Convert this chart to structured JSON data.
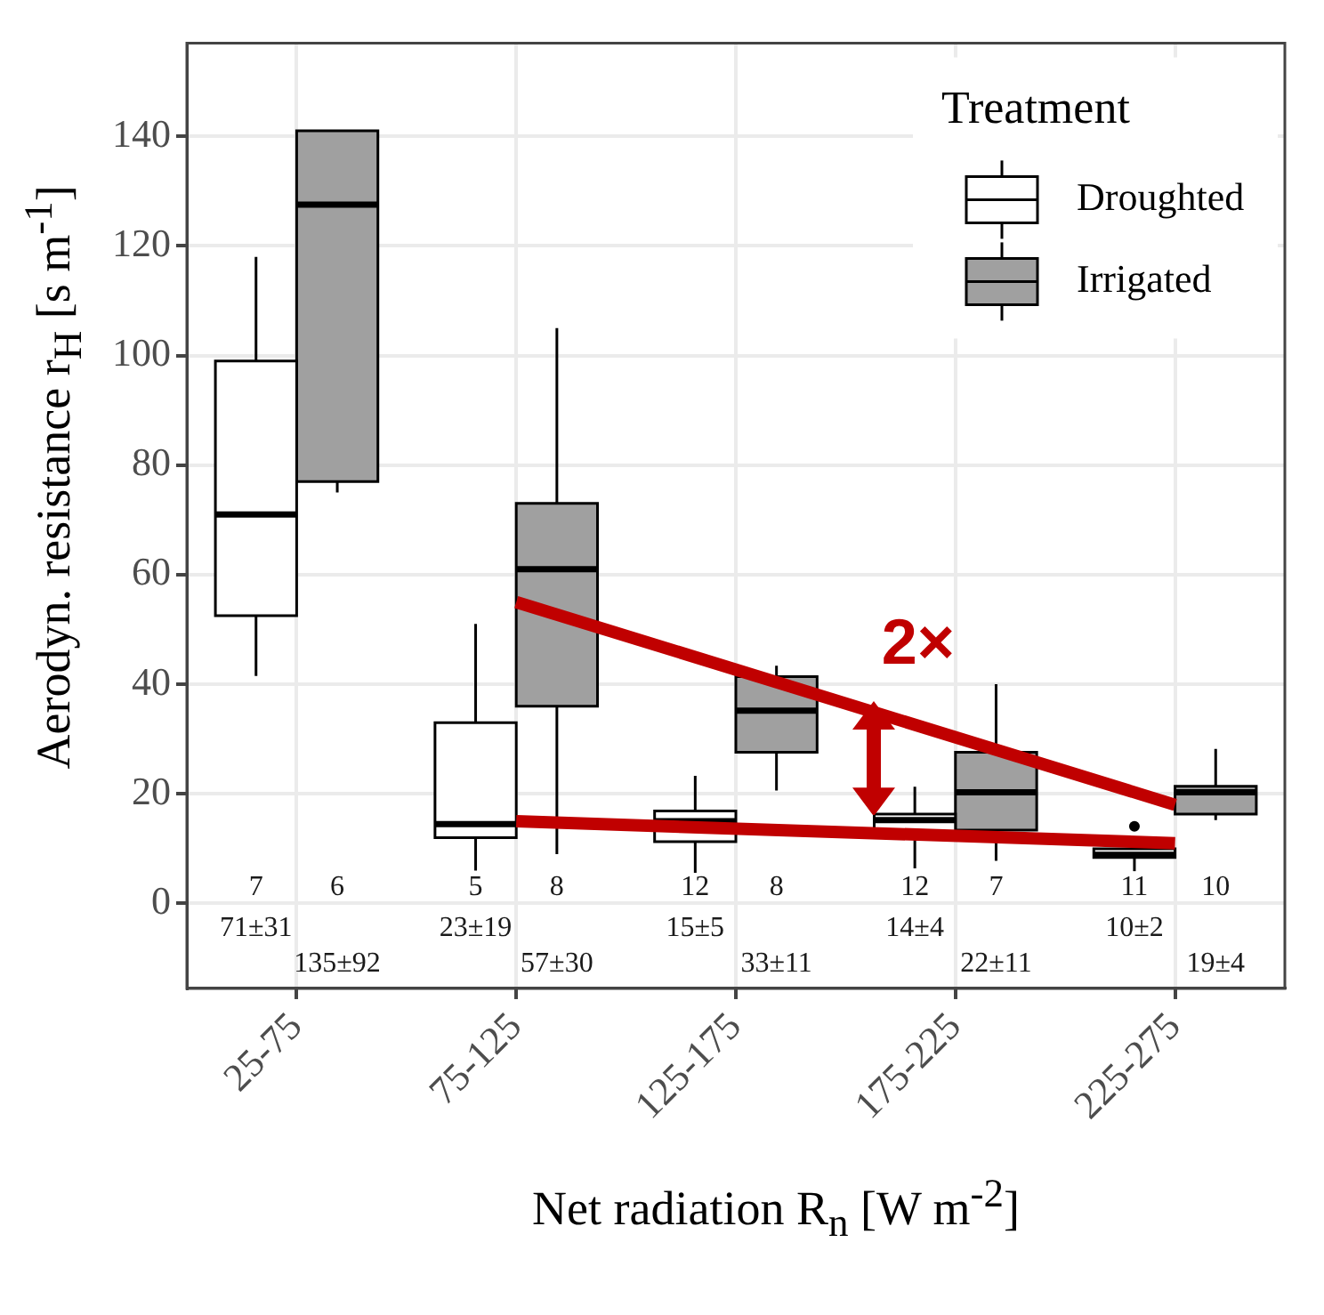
{
  "chart_data": {
    "type": "box",
    "xlabel": "Net radiation R$_{n}$ [W m$^{-2}$]",
    "ylabel": "Aerodyn. resistance r$_{H}$ [s m$^{-1}$]",
    "legend_title": "Treatment",
    "legend": "top right",
    "grid": true,
    "categories": [
      "25-75",
      "75-125",
      "125-175",
      "175-225",
      "225-275"
    ],
    "ylim": [
      -15.5,
      157
    ],
    "yticks": [
      0,
      20,
      40,
      60,
      80,
      100,
      120,
      140
    ],
    "annotations": [
      "2×"
    ],
    "series": [
      {
        "name": "Droughted",
        "color": "#ffffff",
        "boxes": [
          {
            "low": 41.5,
            "q1": 52.5,
            "median": 71,
            "q3": 99,
            "high": 118
          },
          {
            "low": 6,
            "q1": 12,
            "median": 14.5,
            "q3": 33,
            "high": 51
          },
          {
            "low": 5.6,
            "q1": 11.3,
            "median": 15,
            "q3": 16.9,
            "high": 23.3
          },
          {
            "low": 6.4,
            "q1": 13.1,
            "median": 15.2,
            "q3": 16.3,
            "high": 21.3
          },
          {
            "low": 5.9,
            "q1": 8.4,
            "median": 8.9,
            "q3": 10,
            "high": 10,
            "outliers": [
              14.1
            ]
          }
        ],
        "value_labels": [
          "7\n71±31",
          "5\n23±19",
          "12\n15±5",
          "12\n14±4",
          "11\n10±2"
        ]
      },
      {
        "name": "Irrigated",
        "color": "#a0a0a0",
        "boxes": [
          {
            "low": 75,
            "q1": 77,
            "median": 127.5,
            "q3": 141,
            "high": 141
          },
          {
            "low": 9,
            "q1": 36,
            "median": 61,
            "q3": 73,
            "high": 105
          },
          {
            "low": 20.6,
            "q1": 27.6,
            "median": 35.2,
            "q3": 41.4,
            "high": 43.4
          },
          {
            "low": 7.8,
            "q1": 13.4,
            "median": 20.3,
            "q3": 27.6,
            "high": 40
          },
          {
            "low": 15.2,
            "q1": 16.3,
            "median": 20.3,
            "q3": 21.4,
            "high": 28.2
          }
        ],
        "value_labels": [
          "6\n135±92",
          "8\n57±30",
          "8\n33±11",
          "7\n22±11",
          "10\n19±4"
        ]
      },
      {
        "type": "line",
        "color": "#c00000",
        "x": [
          "75-125",
          "225-275"
        ],
        "values": [
          55,
          18
        ]
      },
      {
        "type": "line",
        "color": "#c00000",
        "x": [
          "75-125",
          "225-275"
        ],
        "values": [
          15,
          11
        ]
      }
    ]
  }
}
